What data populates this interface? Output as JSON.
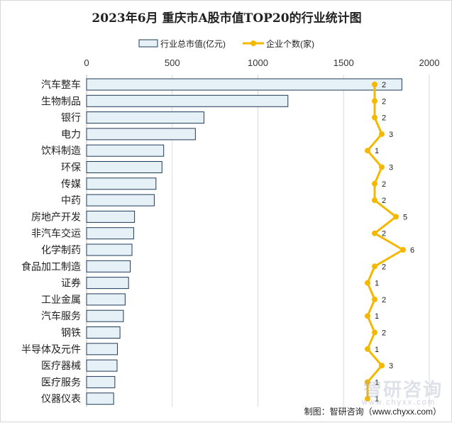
{
  "title": "2023年6月 重庆市A股市值TOP20的行业统计图",
  "source": "制图：智研咨询（www.chyxx.com）",
  "watermark": {
    "logo_text": "智研咨询",
    "url": "www.chyxx.com"
  },
  "colors": {
    "bar_fill": "#e6f1f7",
    "bar_stroke": "#1f3b57",
    "line": "#f5b800",
    "grid": "#d9d9d9"
  },
  "chart_data": {
    "type": "bar",
    "orientation": "horizontal",
    "categories": [
      "汽车整车",
      "生物制品",
      "银行",
      "电力",
      "饮料制造",
      "环保",
      "传媒",
      "中药",
      "房地产开发",
      "非汽车交运",
      "化学制药",
      "食品加工制造",
      "证券",
      "工业金属",
      "汽车服务",
      "钢铁",
      "半导体及元件",
      "医疗器械",
      "医疗服务",
      "仪器仪表"
    ],
    "series": [
      {
        "name": "行业总市值(亿元)",
        "type": "bar",
        "values": [
          1840,
          1175,
          685,
          635,
          450,
          440,
          405,
          395,
          280,
          275,
          265,
          255,
          245,
          225,
          215,
          195,
          180,
          178,
          165,
          158
        ]
      },
      {
        "name": "企业个数(家)",
        "type": "line",
        "values": [
          2,
          2,
          2,
          3,
          1,
          3,
          2,
          2,
          5,
          2,
          6,
          2,
          1,
          2,
          1,
          2,
          1,
          3,
          1,
          1
        ]
      }
    ],
    "x_ticks": [
      "0",
      "500",
      "1000",
      "1500",
      "2000"
    ],
    "xlim": [
      0,
      2000
    ],
    "grid": true,
    "legend_position": "top"
  }
}
